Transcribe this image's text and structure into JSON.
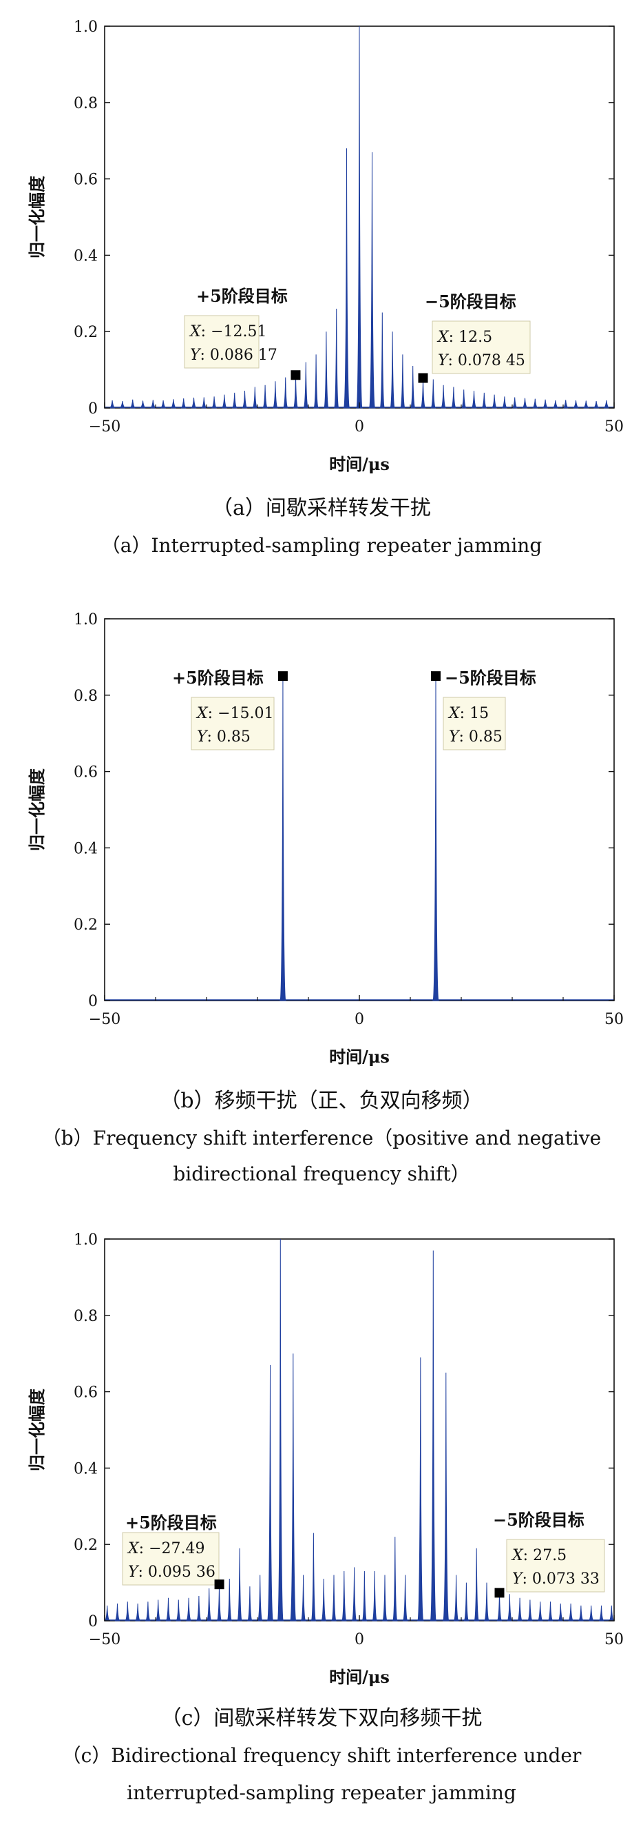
{
  "chart_data": [
    {
      "type": "line",
      "panel": "a",
      "xlabel": "时间/μs",
      "ylabel": "归一化幅度",
      "xlim": [
        -50,
        50
      ],
      "ylim": [
        0,
        1
      ],
      "xticks": [
        "−50",
        "0",
        "50"
      ],
      "yticks": [
        "0",
        "0.2",
        "0.4",
        "0.6",
        "0.8",
        "1.0"
      ],
      "line_color": "#1f3f9f",
      "peaks": [
        {
          "x": -48.5,
          "y": 0.02
        },
        {
          "x": -46.5,
          "y": 0.018
        },
        {
          "x": -44.5,
          "y": 0.022
        },
        {
          "x": -42.5,
          "y": 0.019
        },
        {
          "x": -40.5,
          "y": 0.021
        },
        {
          "x": -38.5,
          "y": 0.02
        },
        {
          "x": -36.5,
          "y": 0.023
        },
        {
          "x": -34.5,
          "y": 0.025
        },
        {
          "x": -32.5,
          "y": 0.027
        },
        {
          "x": -30.5,
          "y": 0.028
        },
        {
          "x": -28.5,
          "y": 0.03
        },
        {
          "x": -26.5,
          "y": 0.035
        },
        {
          "x": -24.5,
          "y": 0.04
        },
        {
          "x": -22.5,
          "y": 0.045
        },
        {
          "x": -20.5,
          "y": 0.055
        },
        {
          "x": -18.5,
          "y": 0.06
        },
        {
          "x": -16.5,
          "y": 0.07
        },
        {
          "x": -14.5,
          "y": 0.08
        },
        {
          "x": -12.5,
          "y": 0.086
        },
        {
          "x": -10.5,
          "y": 0.12
        },
        {
          "x": -8.5,
          "y": 0.14
        },
        {
          "x": -6.5,
          "y": 0.2
        },
        {
          "x": -4.5,
          "y": 0.26
        },
        {
          "x": -2.5,
          "y": 0.68
        },
        {
          "x": 0,
          "y": 1.0
        },
        {
          "x": 2.5,
          "y": 0.67
        },
        {
          "x": 4.5,
          "y": 0.25
        },
        {
          "x": 6.5,
          "y": 0.2
        },
        {
          "x": 8.5,
          "y": 0.14
        },
        {
          "x": 10.5,
          "y": 0.11
        },
        {
          "x": 12.5,
          "y": 0.078
        },
        {
          "x": 14.5,
          "y": 0.075
        },
        {
          "x": 16.5,
          "y": 0.06
        },
        {
          "x": 18.5,
          "y": 0.055
        },
        {
          "x": 20.5,
          "y": 0.048
        },
        {
          "x": 22.5,
          "y": 0.045
        },
        {
          "x": 24.5,
          "y": 0.04
        },
        {
          "x": 26.5,
          "y": 0.035
        },
        {
          "x": 28.5,
          "y": 0.03
        },
        {
          "x": 30.5,
          "y": 0.028
        },
        {
          "x": 32.5,
          "y": 0.026
        },
        {
          "x": 34.5,
          "y": 0.024
        },
        {
          "x": 36.5,
          "y": 0.022
        },
        {
          "x": 38.5,
          "y": 0.02
        },
        {
          "x": 40.5,
          "y": 0.021
        },
        {
          "x": 42.5,
          "y": 0.02
        },
        {
          "x": 44.5,
          "y": 0.019
        },
        {
          "x": 46.5,
          "y": 0.018
        },
        {
          "x": 48.5,
          "y": 0.02
        }
      ],
      "annotations": [
        {
          "title": "+5阶段目标",
          "xlabel": "X",
          "ylabel": "Y",
          "xval": ": −12.51",
          "yval": ": 0.086 17",
          "x": -12.51,
          "y": 0.08617
        },
        {
          "title": "−5阶段目标",
          "xlabel": "X",
          "ylabel": "Y",
          "xval": ": 12.5",
          "yval": ": 0.078 45",
          "x": 12.5,
          "y": 0.07845
        }
      ],
      "caption_cn": "（a）间歇采样转发干扰",
      "caption_en": "（a）Interrupted-sampling repeater jamming"
    },
    {
      "type": "line",
      "panel": "b",
      "xlabel": "时间/μs",
      "ylabel": "归一化幅度",
      "xlim": [
        -50,
        50
      ],
      "ylim": [
        0,
        1
      ],
      "xticks": [
        "−50",
        "0",
        "50"
      ],
      "yticks": [
        "0",
        "0.2",
        "0.4",
        "0.6",
        "0.8",
        "1.0"
      ],
      "line_color": "#1f3f9f",
      "peaks": [
        {
          "x": -15.01,
          "y": 0.85
        },
        {
          "x": 15,
          "y": 0.85
        }
      ],
      "annotations": [
        {
          "title": "+5阶段目标",
          "xlabel": "X",
          "ylabel": "Y",
          "xval": ": −15.01",
          "yval": ": 0.85",
          "x": -15.01,
          "y": 0.85
        },
        {
          "title": "−5阶段目标",
          "xlabel": "X",
          "ylabel": "Y",
          "xval": ": 15",
          "yval": ": 0.85",
          "x": 15,
          "y": 0.85
        }
      ],
      "caption_cn": "（b）移频干扰（正、负双向移频）",
      "caption_en_1": "（b）Frequency shift interference（positive and negative",
      "caption_en_2": "bidirectional frequency shift）"
    },
    {
      "type": "line",
      "panel": "c",
      "xlabel": "时间/μs",
      "ylabel": "归一化幅度",
      "xlim": [
        -50,
        50
      ],
      "ylim": [
        0,
        1
      ],
      "xticks": [
        "−50",
        "0",
        "50"
      ],
      "yticks": [
        "0",
        "0.2",
        "0.4",
        "0.6",
        "0.8",
        "1.0"
      ],
      "line_color": "#1f3f9f",
      "peaks": [
        {
          "x": -49.5,
          "y": 0.04
        },
        {
          "x": -47.5,
          "y": 0.045
        },
        {
          "x": -45.5,
          "y": 0.05
        },
        {
          "x": -43.5,
          "y": 0.045
        },
        {
          "x": -41.5,
          "y": 0.05
        },
        {
          "x": -39.5,
          "y": 0.055
        },
        {
          "x": -37.5,
          "y": 0.06
        },
        {
          "x": -35.5,
          "y": 0.055
        },
        {
          "x": -33.5,
          "y": 0.06
        },
        {
          "x": -31.5,
          "y": 0.065
        },
        {
          "x": -29.5,
          "y": 0.085
        },
        {
          "x": -27.5,
          "y": 0.095
        },
        {
          "x": -25.5,
          "y": 0.11
        },
        {
          "x": -23.5,
          "y": 0.19
        },
        {
          "x": -21.5,
          "y": 0.09
        },
        {
          "x": -19.5,
          "y": 0.12
        },
        {
          "x": -17.5,
          "y": 0.67
        },
        {
          "x": -15.5,
          "y": 1.0
        },
        {
          "x": -13,
          "y": 0.7
        },
        {
          "x": -11,
          "y": 0.12
        },
        {
          "x": -9,
          "y": 0.23
        },
        {
          "x": -7,
          "y": 0.11
        },
        {
          "x": -5,
          "y": 0.12
        },
        {
          "x": -3,
          "y": 0.13
        },
        {
          "x": -1,
          "y": 0.14
        },
        {
          "x": 1,
          "y": 0.13
        },
        {
          "x": 3,
          "y": 0.13
        },
        {
          "x": 5,
          "y": 0.12
        },
        {
          "x": 7,
          "y": 0.22
        },
        {
          "x": 9,
          "y": 0.12
        },
        {
          "x": 12,
          "y": 0.69
        },
        {
          "x": 14.5,
          "y": 0.97
        },
        {
          "x": 17,
          "y": 0.65
        },
        {
          "x": 19,
          "y": 0.12
        },
        {
          "x": 21,
          "y": 0.1
        },
        {
          "x": 23,
          "y": 0.19
        },
        {
          "x": 25,
          "y": 0.1
        },
        {
          "x": 27.5,
          "y": 0.073
        },
        {
          "x": 29.5,
          "y": 0.07
        },
        {
          "x": 31.5,
          "y": 0.06
        },
        {
          "x": 33.5,
          "y": 0.055
        },
        {
          "x": 35.5,
          "y": 0.05
        },
        {
          "x": 37.5,
          "y": 0.05
        },
        {
          "x": 39.5,
          "y": 0.045
        },
        {
          "x": 41.5,
          "y": 0.045
        },
        {
          "x": 43.5,
          "y": 0.04
        },
        {
          "x": 45.5,
          "y": 0.04
        },
        {
          "x": 47.5,
          "y": 0.04
        },
        {
          "x": 49.5,
          "y": 0.04
        }
      ],
      "annotations": [
        {
          "title": "+5阶段目标",
          "xlabel": "X",
          "ylabel": "Y",
          "xval": ": −27.49",
          "yval": ": 0.095 36",
          "x": -27.49,
          "y": 0.09536
        },
        {
          "title": "−5阶段目标",
          "xlabel": "X",
          "ylabel": "Y",
          "xval": ": 27.5",
          "yval": ": 0.073 33",
          "x": 27.5,
          "y": 0.07333
        }
      ],
      "caption_cn": "（c）间歇采样转发下双向移频干扰",
      "caption_en_1": "（c）Bidirectional frequency shift interference under",
      "caption_en_2": "interrupted-sampling repeater jamming"
    }
  ]
}
